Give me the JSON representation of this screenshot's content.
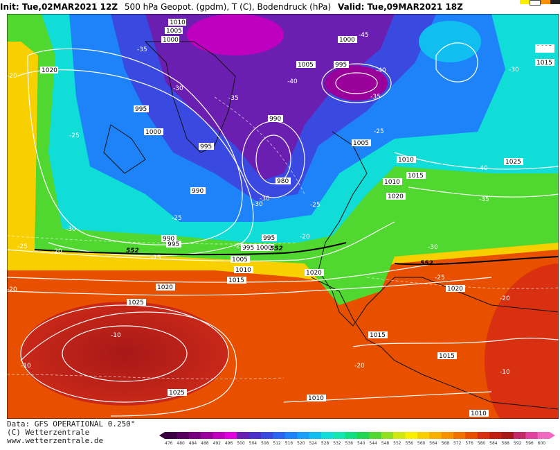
{
  "header": {
    "init": "Init: Tue,02MAR2021 12Z",
    "product": "500 hPa Geopot. (gpdm), T (C), Bodendruck (hPa)",
    "valid": "Valid: Tue,09MAR2021 18Z"
  },
  "footer": {
    "data_source": "Data: GFS OPERATIONAL 0.250°",
    "copyright": "(C) Wetterzentrale",
    "website": "www.wetterzentrale.de"
  },
  "legend": {
    "ticks": [
      "476",
      "480",
      "484",
      "488",
      "492",
      "496",
      "500",
      "504",
      "508",
      "512",
      "516",
      "520",
      "524",
      "528",
      "532",
      "536",
      "540",
      "544",
      "548",
      "552",
      "556",
      "560",
      "564",
      "568",
      "572",
      "576",
      "580",
      "584",
      "588",
      "592",
      "596",
      "600"
    ],
    "colors": [
      "#3a0040",
      "#55005f",
      "#77007f",
      "#9a009a",
      "#c000c0",
      "#e000e0",
      "#6a1fb0",
      "#4a30c8",
      "#3a4ae0",
      "#2a64f0",
      "#1e82f8",
      "#16a0f8",
      "#10bef0",
      "#10dcd8",
      "#10e8b0",
      "#10e080",
      "#20d850",
      "#50d830",
      "#90e020",
      "#d0e810",
      "#f8f000",
      "#f8d000",
      "#f8b000",
      "#f89000",
      "#f07000",
      "#e85000",
      "#d83010",
      "#c02010",
      "#a81818",
      "#c02868",
      "#e040a0",
      "#f068c0"
    ]
  },
  "map": {
    "isobars": [
      "1010",
      "1005",
      "1000",
      "1020",
      "995",
      "1000",
      "995",
      "1005",
      "995",
      "1000",
      "990",
      "1005",
      "1010",
      "1015",
      "1010",
      "990",
      "980",
      "1020",
      "1025",
      "1015",
      "995",
      "990",
      "995",
      "995",
      "1000",
      "1005",
      "1010",
      "1015",
      "1020",
      "1020",
      "1025",
      "1015",
      "1015",
      "1020",
      "1025",
      "1010",
      "1010",
      "1015"
    ],
    "temperatures": [
      "-35",
      "-30",
      "-45",
      "-40",
      "-20",
      "-25",
      "-35",
      "-40",
      "-35",
      "-30",
      "-25",
      "-40",
      "-30",
      "-35",
      "-30",
      "-25",
      "-30",
      "-25",
      "-20",
      "-20",
      "-15",
      "-25",
      "-20",
      "-30",
      "-25",
      "-20",
      "-10",
      "-10",
      "-20",
      "-10",
      "-15"
    ],
    "heights": [
      "552",
      "552",
      "552"
    ]
  }
}
